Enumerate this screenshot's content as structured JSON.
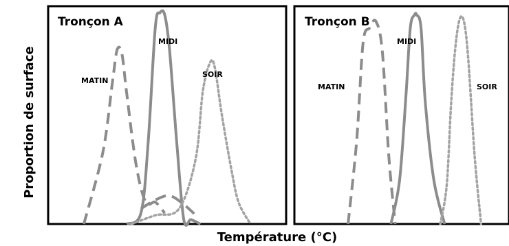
{
  "chart_data": {
    "type": "line",
    "xlabel": "Température (°C)",
    "ylabel": "Proportion de surface",
    "x_range": [
      0,
      100
    ],
    "y_range": [
      0,
      1
    ],
    "panels": [
      {
        "title": "Tronçon A",
        "series": [
          {
            "name": "MATIN",
            "style": "dashed",
            "x": [
              15,
              23,
              27,
              29,
              31,
              33,
              37,
              41,
              45,
              49
            ],
            "y": [
              0.0,
              0.33,
              0.65,
              0.8,
              0.78,
              0.6,
              0.27,
              0.1,
              0.1,
              0.05
            ]
          },
          {
            "name": "MIDI",
            "style": "solid",
            "x": [
              33,
              39,
              42,
              45,
              47,
              49,
              51,
              54,
              57,
              60,
              64
            ],
            "y": [
              0.0,
              0.05,
              0.37,
              0.9,
              0.97,
              0.96,
              0.8,
              0.38,
              0.02,
              0.02,
              0.0
            ]
          },
          {
            "name": "",
            "style": "dashed",
            "x": [
              39,
              45,
              51,
              57,
              63
            ],
            "y": [
              0.07,
              0.11,
              0.13,
              0.09,
              0.03
            ]
          },
          {
            "name": "SOIR",
            "style": "dotted",
            "x": [
              35,
              45,
              55,
              62,
              65,
              68,
              70,
              73,
              77,
              80,
              85
            ],
            "y": [
              0.0,
              0.04,
              0.07,
              0.3,
              0.61,
              0.74,
              0.72,
              0.5,
              0.25,
              0.1,
              0.0
            ]
          }
        ]
      },
      {
        "title": "Tronçon B",
        "series": [
          {
            "name": "MATIN",
            "style": "dashed",
            "x": [
              25,
              29,
              32,
              35,
              38,
              41,
              44,
              47
            ],
            "y": [
              0.0,
              0.38,
              0.83,
              0.9,
              0.93,
              0.79,
              0.31,
              0.0
            ]
          },
          {
            "name": "MIDI",
            "style": "solid",
            "x": [
              45,
              49,
              52,
              54,
              56,
              57,
              59,
              61,
              65,
              70
            ],
            "y": [
              0.0,
              0.2,
              0.59,
              0.9,
              0.96,
              0.96,
              0.9,
              0.56,
              0.2,
              0.0
            ]
          },
          {
            "name": "SOIR",
            "style": "dotted",
            "x": [
              68,
              71,
              73,
              75,
              77,
              79,
              81,
              84,
              87
            ],
            "y": [
              0.0,
              0.18,
              0.55,
              0.81,
              0.94,
              0.93,
              0.76,
              0.31,
              0.0
            ]
          }
        ]
      }
    ]
  },
  "colors": {
    "solid": "#8c8c8c",
    "dashed": "#8c8c8c",
    "dotted": "#a3a3a3",
    "frame": "#000000"
  }
}
